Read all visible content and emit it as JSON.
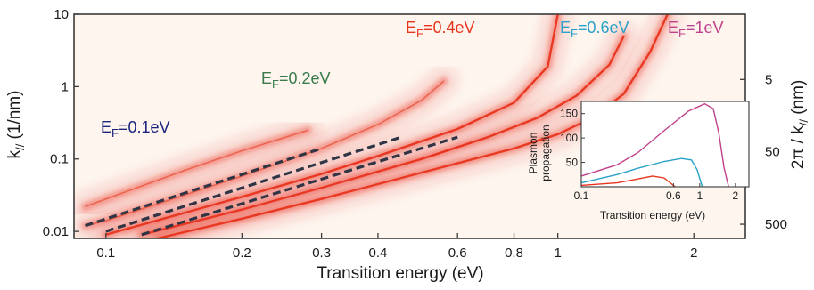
{
  "chart_data": [
    {
      "type": "heatmap",
      "title": "",
      "xlabel": "Transition energy (eV)",
      "ylabel": "k// (1/nm)",
      "ylabel_parts": {
        "main": "k",
        "sub": "//",
        "rest": " (1/nm)"
      },
      "y2label": "2π / k// (nm)",
      "y2label_parts": {
        "main": "2π / k",
        "sub": "//",
        "rest": " (nm)"
      },
      "xscale": "log",
      "yscale": "log",
      "xlim": [
        0.085,
        2.6
      ],
      "ylim": [
        0.008,
        10
      ],
      "xticks": [
        0.1,
        0.2,
        0.3,
        0.4,
        0.6,
        0.8,
        1,
        2
      ],
      "xtick_labels": [
        "0.1",
        "0.2",
        "0.3",
        "0.4",
        "0.6",
        "0.8",
        "1",
        "2"
      ],
      "yticks": [
        0.01,
        0.1,
        1,
        10
      ],
      "ytick_labels": [
        "0.01",
        "0.1",
        "1",
        "10"
      ],
      "y2ticks": [
        5,
        50,
        500
      ],
      "y2tick_labels": [
        "5",
        "50",
        "500"
      ],
      "grid": false,
      "colormap": [
        "#fdf5ee",
        "#e8341c"
      ],
      "background_color": "#fdf5ee",
      "series": [
        {
          "name": "E_F=0.1eV",
          "label_main": "E",
          "label_sub": "F",
          "label_rest": "=0.1eV",
          "color": "#1a237e",
          "x": [
            0.09,
            0.1,
            0.15,
            0.2,
            0.25,
            0.28
          ],
          "y": [
            0.022,
            0.028,
            0.07,
            0.13,
            0.2,
            0.25
          ]
        },
        {
          "name": "E_F=0.2eV",
          "label_main": "E",
          "label_sub": "F",
          "label_rest": "=0.2eV",
          "color": "#3a7a4a",
          "x": [
            0.09,
            0.1,
            0.15,
            0.2,
            0.3,
            0.4,
            0.5,
            0.56
          ],
          "y": [
            0.012,
            0.014,
            0.032,
            0.058,
            0.14,
            0.3,
            0.65,
            1.2
          ]
        },
        {
          "name": "E_F=0.4eV",
          "label_main": "E",
          "label_sub": "F",
          "label_rest": "=0.4eV",
          "color": "#e8341c",
          "x": [
            0.1,
            0.2,
            0.3,
            0.4,
            0.6,
            0.8,
            0.95,
            1.0
          ],
          "y": [
            0.009,
            0.03,
            0.062,
            0.11,
            0.26,
            0.6,
            1.9,
            10
          ]
        },
        {
          "name": "E_F=0.6eV",
          "label_main": "E",
          "label_sub": "F",
          "label_rest": "=0.6eV",
          "color": "#2aa1c8",
          "x": [
            0.12,
            0.2,
            0.3,
            0.5,
            0.7,
            0.9,
            1.1,
            1.3,
            1.4
          ],
          "y": [
            0.009,
            0.02,
            0.04,
            0.1,
            0.2,
            0.37,
            0.75,
            2.0,
            5.0
          ]
        },
        {
          "name": "E_F=1eV",
          "label_main": "E",
          "label_sub": "F",
          "label_rest": "=1eV",
          "color": "#c0408a",
          "x": [
            0.13,
            0.2,
            0.3,
            0.5,
            0.8,
            1.0,
            1.2,
            1.4,
            1.6,
            1.75
          ],
          "y": [
            0.008,
            0.015,
            0.028,
            0.065,
            0.14,
            0.22,
            0.38,
            0.8,
            3.0,
            10
          ]
        }
      ],
      "dashed_fits": [
        {
          "x": [
            0.09,
            0.3
          ],
          "y": [
            0.012,
            0.14
          ]
        },
        {
          "x": [
            0.1,
            0.45
          ],
          "y": [
            0.01,
            0.2
          ]
        },
        {
          "x": [
            0.12,
            0.6
          ],
          "y": [
            0.009,
            0.2
          ]
        }
      ],
      "annotation_order": [
        "E_F=0.1eV",
        "E_F=0.2eV",
        "E_F=0.4eV",
        "E_F=0.6eV",
        "E_F=1eV"
      ]
    },
    {
      "type": "line",
      "title": "",
      "xlabel": "Transition energy (eV)",
      "ylabel": "Plasmon propagation",
      "ylabel_lines": [
        "Plasmon",
        "propagation"
      ],
      "xscale": "log",
      "xlim": [
        0.1,
        2.6
      ],
      "ylim": [
        0,
        175
      ],
      "xticks": [
        0.1,
        0.6,
        1,
        2
      ],
      "xtick_labels": [
        "0.1",
        "0.6",
        "1",
        "2"
      ],
      "yticks": [
        0,
        50,
        100,
        150
      ],
      "ytick_labels": [
        "",
        "50",
        "100",
        "150"
      ],
      "grid": false,
      "series": [
        {
          "color": "#e8341c",
          "x": [
            0.1,
            0.2,
            0.3,
            0.4,
            0.5,
            0.55,
            0.62
          ],
          "y": [
            3,
            8,
            16,
            22,
            18,
            10,
            0
          ]
        },
        {
          "color": "#2aa1c8",
          "x": [
            0.1,
            0.2,
            0.3,
            0.5,
            0.7,
            0.85,
            0.95,
            1.05
          ],
          "y": [
            8,
            25,
            38,
            52,
            58,
            55,
            35,
            0
          ]
        },
        {
          "color": "#c0408a",
          "x": [
            0.1,
            0.2,
            0.3,
            0.5,
            0.8,
            1.1,
            1.3,
            1.45,
            1.6,
            1.75
          ],
          "y": [
            22,
            45,
            70,
            115,
            155,
            170,
            160,
            110,
            40,
            0
          ]
        }
      ]
    }
  ]
}
